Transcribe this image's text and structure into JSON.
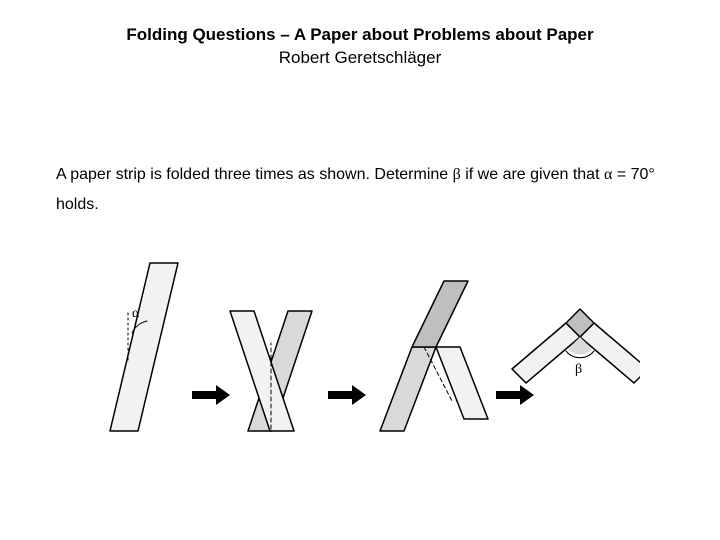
{
  "title": "Folding Questions – A Paper about Problems about Paper",
  "author": "Robert Geretschläger",
  "problem_prefix": "A paper strip is folded three times as shown. Determine ",
  "beta": "β",
  "problem_mid": " if we are given that ",
  "alpha": "α",
  "problem_suffix": " = 70° holds.",
  "figure": {
    "labels": {
      "alpha": "α",
      "beta": "β"
    },
    "stroke": "#000000",
    "fill_light": "#f2f2f2",
    "fill_mid": "#d9d9d9",
    "fill_dark": "#bfbfbf",
    "arrow_fill": "#000000"
  }
}
